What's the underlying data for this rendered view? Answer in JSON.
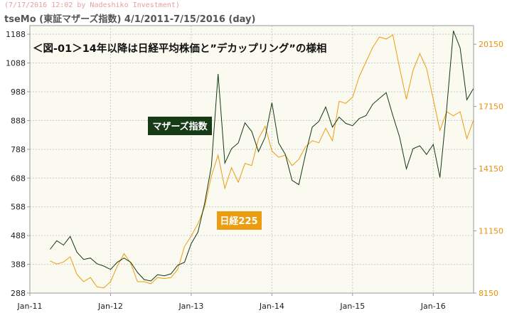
{
  "header": {
    "timestamp": "(7/17/2016 12:02 by Nadeshiko Investment)",
    "title": "tseMo (東証マザーズ指数)  4/1/2011-7/15/2016 (day)"
  },
  "chart_data": {
    "type": "line",
    "title": "＜図-01＞14年以降は日経平均株価と”デカップリング”の様相",
    "x_ticks": [
      "Jan-11",
      "Jan-12",
      "Jan-13",
      "Jan-14",
      "Jan-15",
      "Jan-16"
    ],
    "x_tick_dates": [
      "2011-01",
      "2012-01",
      "2013-01",
      "2014-01",
      "2015-01",
      "2016-01"
    ],
    "x_range": [
      "2011-01",
      "2016-07"
    ],
    "y_left_ticks": [
      "1188",
      "1088",
      "988",
      "888",
      "788",
      "688",
      "588",
      "488",
      "388",
      "288"
    ],
    "y_left_range": [
      288,
      1218
    ],
    "y_right_ticks": [
      "20150",
      "17150",
      "14150",
      "11150",
      "8150"
    ],
    "y_right_range": [
      8150,
      21050
    ],
    "grid": true,
    "series": [
      {
        "name": "マザーズ指数",
        "axis": "left",
        "color": "#123a12",
        "points": [
          [
            "2011-04",
            440
          ],
          [
            "2011-05",
            470
          ],
          [
            "2011-06",
            455
          ],
          [
            "2011-07",
            485
          ],
          [
            "2011-08",
            430
          ],
          [
            "2011-09",
            405
          ],
          [
            "2011-10",
            410
          ],
          [
            "2011-11",
            390
          ],
          [
            "2011-12",
            382
          ],
          [
            "2012-01",
            370
          ],
          [
            "2012-02",
            395
          ],
          [
            "2012-03",
            410
          ],
          [
            "2012-04",
            395
          ],
          [
            "2012-05",
            360
          ],
          [
            "2012-06",
            335
          ],
          [
            "2012-07",
            330
          ],
          [
            "2012-08",
            352
          ],
          [
            "2012-09",
            348
          ],
          [
            "2012-10",
            355
          ],
          [
            "2012-11",
            385
          ],
          [
            "2012-12",
            395
          ],
          [
            "2013-01",
            460
          ],
          [
            "2013-02",
            500
          ],
          [
            "2013-03",
            600
          ],
          [
            "2013-04",
            730
          ],
          [
            "2013-05",
            1050
          ],
          [
            "2013-06",
            740
          ],
          [
            "2013-07",
            790
          ],
          [
            "2013-08",
            810
          ],
          [
            "2013-09",
            880
          ],
          [
            "2013-10",
            850
          ],
          [
            "2013-11",
            780
          ],
          [
            "2013-12",
            830
          ],
          [
            "2014-01",
            950
          ],
          [
            "2014-02",
            810
          ],
          [
            "2014-03",
            770
          ],
          [
            "2014-04",
            680
          ],
          [
            "2014-05",
            665
          ],
          [
            "2014-06",
            770
          ],
          [
            "2014-07",
            865
          ],
          [
            "2014-08",
            885
          ],
          [
            "2014-09",
            935
          ],
          [
            "2014-10",
            865
          ],
          [
            "2014-11",
            900
          ],
          [
            "2014-12",
            878
          ],
          [
            "2015-01",
            870
          ],
          [
            "2015-02",
            895
          ],
          [
            "2015-03",
            905
          ],
          [
            "2015-04",
            945
          ],
          [
            "2015-05",
            965
          ],
          [
            "2015-06",
            985
          ],
          [
            "2015-07",
            905
          ],
          [
            "2015-08",
            830
          ],
          [
            "2015-09",
            720
          ],
          [
            "2015-10",
            790
          ],
          [
            "2015-11",
            800
          ],
          [
            "2015-12",
            770
          ],
          [
            "2016-01",
            805
          ],
          [
            "2016-02",
            690
          ],
          [
            "2016-03",
            930
          ],
          [
            "2016-04",
            1200
          ],
          [
            "2016-05",
            1140
          ],
          [
            "2016-06",
            960
          ],
          [
            "2016-07",
            1000
          ]
        ]
      },
      {
        "name": "日経225",
        "axis": "right",
        "color": "#eb9c10",
        "points": [
          [
            "2011-04",
            9700
          ],
          [
            "2011-05",
            9550
          ],
          [
            "2011-06",
            9650
          ],
          [
            "2011-07",
            9900
          ],
          [
            "2011-08",
            9050
          ],
          [
            "2011-09",
            8700
          ],
          [
            "2011-10",
            8900
          ],
          [
            "2011-11",
            8450
          ],
          [
            "2011-12",
            8400
          ],
          [
            "2012-01",
            8700
          ],
          [
            "2012-02",
            9450
          ],
          [
            "2012-03",
            10050
          ],
          [
            "2012-04",
            9600
          ],
          [
            "2012-05",
            8700
          ],
          [
            "2012-06",
            8700
          ],
          [
            "2012-07",
            8600
          ],
          [
            "2012-08",
            8900
          ],
          [
            "2012-09",
            8850
          ],
          [
            "2012-10",
            8900
          ],
          [
            "2012-11",
            9300
          ],
          [
            "2012-12",
            10400
          ],
          [
            "2013-01",
            10900
          ],
          [
            "2013-02",
            11500
          ],
          [
            "2013-03",
            12300
          ],
          [
            "2013-04",
            13800
          ],
          [
            "2013-05",
            14800
          ],
          [
            "2013-06",
            13200
          ],
          [
            "2013-07",
            14200
          ],
          [
            "2013-08",
            13500
          ],
          [
            "2013-09",
            14400
          ],
          [
            "2013-10",
            14300
          ],
          [
            "2013-11",
            15600
          ],
          [
            "2013-12",
            16200
          ],
          [
            "2014-01",
            15000
          ],
          [
            "2014-02",
            14700
          ],
          [
            "2014-03",
            14800
          ],
          [
            "2014-04",
            14300
          ],
          [
            "2014-05",
            14600
          ],
          [
            "2014-06",
            15200
          ],
          [
            "2014-07",
            15500
          ],
          [
            "2014-08",
            15400
          ],
          [
            "2014-09",
            16100
          ],
          [
            "2014-10",
            15500
          ],
          [
            "2014-11",
            17400
          ],
          [
            "2014-12",
            17300
          ],
          [
            "2015-01",
            17600
          ],
          [
            "2015-02",
            18600
          ],
          [
            "2015-03",
            19300
          ],
          [
            "2015-04",
            20000
          ],
          [
            "2015-05",
            20500
          ],
          [
            "2015-06",
            20400
          ],
          [
            "2015-07",
            20600
          ],
          [
            "2015-08",
            19000
          ],
          [
            "2015-09",
            17500
          ],
          [
            "2015-10",
            18900
          ],
          [
            "2015-11",
            19700
          ],
          [
            "2015-12",
            19000
          ],
          [
            "2016-01",
            17500
          ],
          [
            "2016-02",
            16000
          ],
          [
            "2016-03",
            16900
          ],
          [
            "2016-04",
            16700
          ],
          [
            "2016-05",
            16900
          ],
          [
            "2016-06",
            15600
          ],
          [
            "2016-07",
            16500
          ]
        ]
      }
    ],
    "labels": {
      "mothers_badge": "マザーズ指数",
      "nikkei_badge": "日経225"
    }
  }
}
